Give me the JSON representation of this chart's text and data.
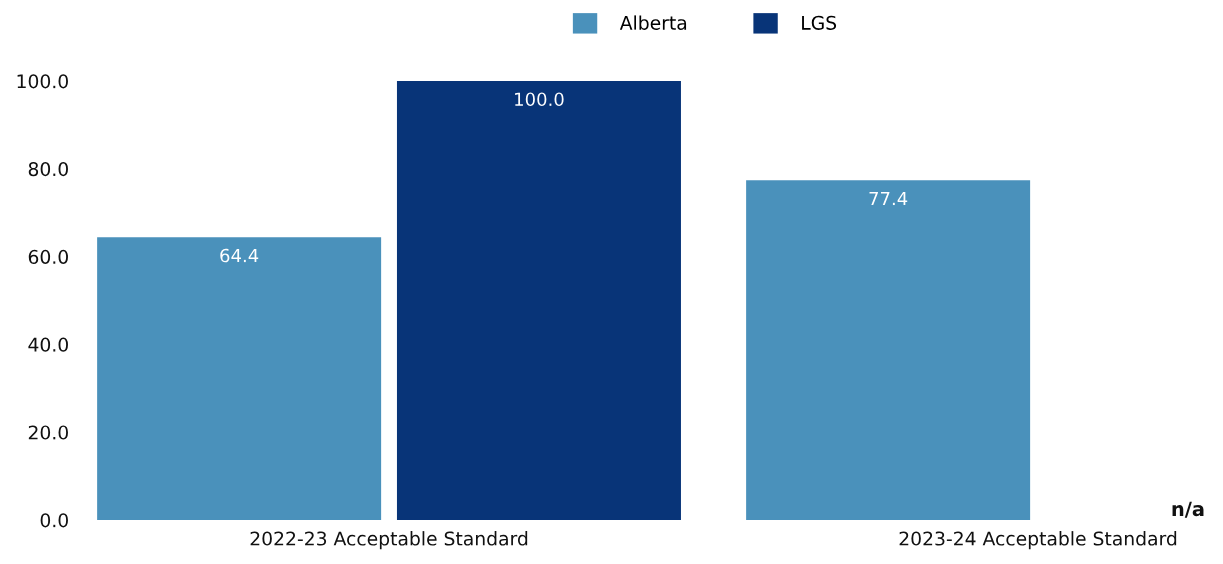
{
  "chart_data": {
    "type": "bar",
    "categories": [
      "2022-23 Acceptable Standard",
      "2023-24 Acceptable Standard"
    ],
    "series": [
      {
        "name": "Alberta",
        "color": "#4a91bb",
        "values": [
          64.4,
          77.4
        ],
        "value_labels": [
          "64.4",
          "77.4"
        ]
      },
      {
        "name": "LGS",
        "color": "#083478",
        "values": [
          100.0,
          null
        ],
        "value_labels": [
          "100.0",
          "n/a"
        ]
      }
    ],
    "ylim": [
      0,
      100
    ],
    "yticks": [
      {
        "value": 0,
        "label": "0.0"
      },
      {
        "value": 20,
        "label": "20.0"
      },
      {
        "value": 40,
        "label": "40.0"
      },
      {
        "value": 60,
        "label": "60.0"
      },
      {
        "value": 80,
        "label": "80.0"
      },
      {
        "value": 100,
        "label": "100.0"
      }
    ],
    "legend": "top",
    "grid": false
  }
}
